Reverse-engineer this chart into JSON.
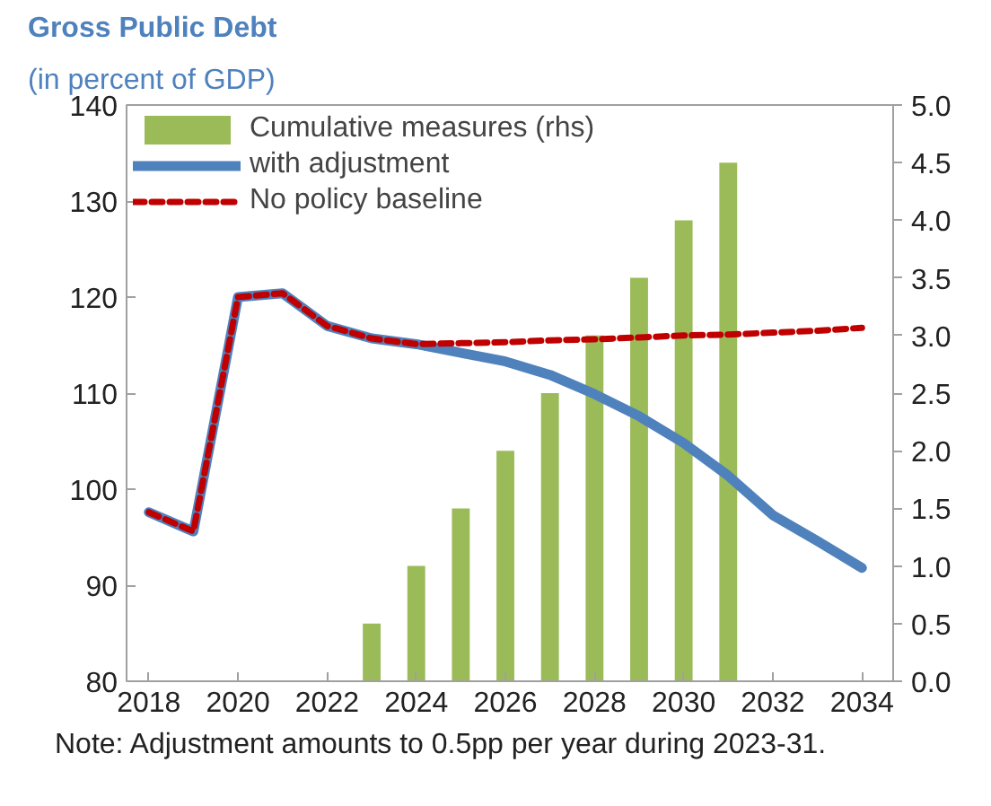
{
  "chart_data": {
    "type": "line",
    "title": "Gross Public Debt",
    "subtitle": "(in percent of GDP)",
    "x": [
      2018,
      2019,
      2020,
      2021,
      2022,
      2023,
      2024,
      2025,
      2026,
      2027,
      2028,
      2029,
      2030,
      2031,
      2032,
      2033,
      2034
    ],
    "series": [
      {
        "name": "Cumulative measures (rhs)",
        "type": "bar",
        "axis": "y2",
        "color": "#9bbb59",
        "x": [
          2023,
          2024,
          2025,
          2026,
          2027,
          2028,
          2029,
          2030,
          2031
        ],
        "values": [
          0.5,
          1.0,
          1.5,
          2.0,
          2.5,
          3.0,
          3.5,
          4.0,
          4.5
        ]
      },
      {
        "name": "with adjustment",
        "color": "#4f81bd",
        "line_style": "solid",
        "values": [
          97.6,
          95.6,
          120,
          120.4,
          117,
          115.7,
          115.1,
          114.2,
          113.3,
          111.9,
          109.9,
          107.6,
          104.8,
          101.4,
          97.3,
          94.6,
          91.8
        ]
      },
      {
        "name": "No policy baseline",
        "color": "#c00000",
        "line_style": "dashed",
        "values": [
          97.6,
          95.6,
          120,
          120.4,
          117,
          115.7,
          115.1,
          115.2,
          115.3,
          115.5,
          115.6,
          115.8,
          116,
          116.1,
          116.3,
          116.5,
          116.8
        ]
      }
    ],
    "xlim": [
      2017.5,
      2034.7
    ],
    "xticks": [
      2018,
      2020,
      2022,
      2024,
      2026,
      2028,
      2030,
      2032,
      2034
    ],
    "ylim": [
      80,
      140
    ],
    "yticks": [
      80,
      90,
      100,
      110,
      120,
      130,
      140
    ],
    "y2lim": [
      0,
      5
    ],
    "y2ticks": [
      {
        "value": 0,
        "label": "0.0"
      },
      {
        "value": 0.5,
        "label": "0.5"
      },
      {
        "value": 1,
        "label": "1.0"
      },
      {
        "value": 1.5,
        "label": "1.5"
      },
      {
        "value": 2,
        "label": "2.0"
      },
      {
        "value": 2.5,
        "label": "2.5"
      },
      {
        "value": 3,
        "label": "3.0"
      },
      {
        "value": 3.5,
        "label": "3.5"
      },
      {
        "value": 4,
        "label": "4.0"
      },
      {
        "value": 4.5,
        "label": "4.5"
      },
      {
        "value": 5,
        "label": "5.0"
      }
    ],
    "grid": false,
    "legend": "top left",
    "annotations": [
      "Note: Adjustment amounts to 0.5pp per year during 2023-31."
    ]
  }
}
